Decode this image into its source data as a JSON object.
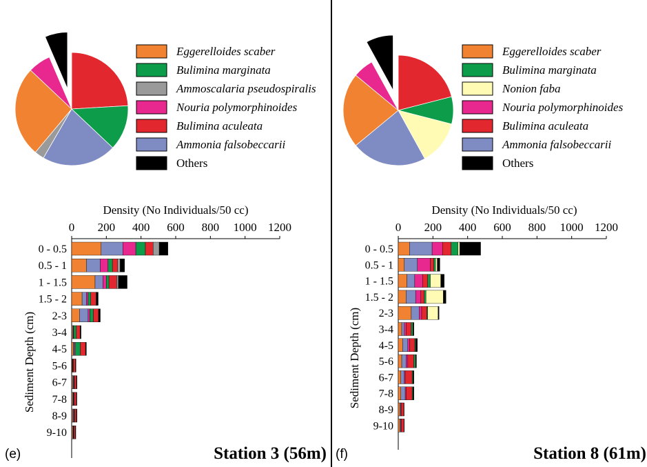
{
  "chart_data": [
    {
      "panel": "(e)",
      "station": "Station 3 (56m)",
      "type": "bar",
      "orientation": "horizontal-stacked",
      "xlabel": "Density  (No Individuals/50 cc)",
      "ylabel": "Sediment Depth (cm)",
      "xlim": [
        0,
        1200
      ],
      "xticks": [
        0,
        200,
        400,
        600,
        800,
        1000,
        1200
      ],
      "categories": [
        "0 - 0.5",
        "0.5 - 1",
        "1 - 1.5",
        "1.5 - 2",
        "2-3",
        "3-4",
        "4-5",
        "5-6",
        "6-7",
        "7-8",
        "8-9",
        "9-10"
      ],
      "series": [
        {
          "name": "Eggerelloides scaber",
          "color": "#F08231",
          "values": [
            170,
            85,
            135,
            60,
            45,
            5,
            10,
            3,
            5,
            5,
            5,
            5
          ]
        },
        {
          "name": "Ammonia falsobeccarii",
          "color": "#7F8CC4",
          "values": [
            125,
            80,
            45,
            25,
            50,
            4,
            5,
            2,
            5,
            4,
            5,
            4
          ]
        },
        {
          "name": "Nouria polymorphinoides",
          "color": "#E8288F",
          "values": [
            75,
            45,
            20,
            10,
            10,
            3,
            5,
            2,
            3,
            3,
            4,
            2
          ]
        },
        {
          "name": "Bulimina marginata",
          "color": "#0D9D4A",
          "values": [
            55,
            25,
            15,
            15,
            20,
            15,
            30,
            3,
            3,
            3,
            4,
            2
          ]
        },
        {
          "name": "Bulimina aculeata",
          "color": "#E2282E",
          "values": [
            45,
            30,
            45,
            30,
            30,
            22,
            30,
            12,
            12,
            12,
            10,
            8
          ]
        },
        {
          "name": "Ammoscalaria pseudospiralis",
          "color": "#9A9A9A",
          "values": [
            35,
            15,
            10,
            3,
            0,
            0,
            0,
            0,
            0,
            0,
            0,
            0
          ]
        },
        {
          "name": "Others",
          "color": "#000000",
          "values": [
            50,
            25,
            50,
            10,
            10,
            5,
            5,
            3,
            3,
            3,
            3,
            3
          ]
        }
      ],
      "pie": {
        "order": [
          "Bulimina aculeata",
          "Bulimina marginata",
          "Ammonia falsobeccarii",
          "Ammoscalaria pseudospiralis",
          "Eggerelloides scaber",
          "Nouria polymorphinoides",
          "Others"
        ],
        "values": [
          26,
          14,
          23,
          3,
          28,
          7,
          7
        ],
        "exploded": "Others"
      },
      "legend": [
        "Eggerelloides scaber",
        "Bulimina marginata",
        "Ammoscalaria pseudospiralis",
        "Nouria polymorphinoides",
        "Bulimina aculeata",
        "Ammonia falsobeccarii",
        "Others"
      ]
    },
    {
      "panel": "(f)",
      "station": "Station 8 (61m)",
      "type": "bar",
      "orientation": "horizontal-stacked",
      "xlabel": "Density  (No Individuals/50 cc)",
      "ylabel": "Sediment Depth (cm)",
      "xlim": [
        0,
        1200
      ],
      "xticks": [
        0,
        200,
        400,
        600,
        800,
        1000,
        1200
      ],
      "categories": [
        "0 - 0.5",
        "0.5 - 1",
        "1 - 1.5",
        "1.5 - 2",
        "2-3",
        "3-4",
        "4-5",
        "5-6",
        "6-7",
        "7-8",
        "8-9",
        "9-10"
      ],
      "series": [
        {
          "name": "Eggerelloides scaber",
          "color": "#F08231",
          "values": [
            65,
            35,
            50,
            45,
            75,
            20,
            25,
            20,
            15,
            15,
            10,
            10
          ]
        },
        {
          "name": "Ammonia falsobeccarii",
          "color": "#7F8CC4",
          "values": [
            130,
            75,
            45,
            55,
            45,
            15,
            30,
            25,
            20,
            25,
            5,
            5
          ]
        },
        {
          "name": "Nouria polymorphinoides",
          "color": "#E8288F",
          "values": [
            60,
            75,
            45,
            30,
            15,
            10,
            10,
            10,
            5,
            5,
            2,
            3
          ]
        },
        {
          "name": "Bulimina aculeata",
          "color": "#E2282E",
          "values": [
            50,
            20,
            30,
            20,
            30,
            30,
            30,
            35,
            40,
            35,
            15,
            15
          ]
        },
        {
          "name": "Bulimina marginata",
          "color": "#0D9D4A",
          "values": [
            40,
            10,
            15,
            10,
            5,
            10,
            5,
            10,
            5,
            5,
            0,
            0
          ]
        },
        {
          "name": "Nonion faba",
          "color": "#FFFBB4",
          "values": [
            10,
            10,
            60,
            100,
            60,
            0,
            0,
            0,
            0,
            0,
            0,
            0
          ]
        },
        {
          "name": "Others",
          "color": "#000000",
          "values": [
            120,
            15,
            20,
            15,
            5,
            5,
            10,
            5,
            5,
            5,
            2,
            2
          ]
        }
      ],
      "pie": {
        "order": [
          "Bulimina aculeata",
          "Bulimina marginata",
          "Nonion faba",
          "Ammonia falsobeccarii",
          "Eggerelloides scaber",
          "Nouria polymorphinoides",
          "Others"
        ],
        "values": [
          21,
          8,
          13,
          22,
          22,
          6,
          8
        ],
        "exploded": "Others"
      },
      "legend": [
        "Eggerelloides scaber",
        "Bulimina marginata",
        "Nonion faba",
        "Nouria polymorphinoides",
        "Bulimina aculeata",
        "Ammonia falsobeccarii",
        "Others"
      ]
    }
  ]
}
